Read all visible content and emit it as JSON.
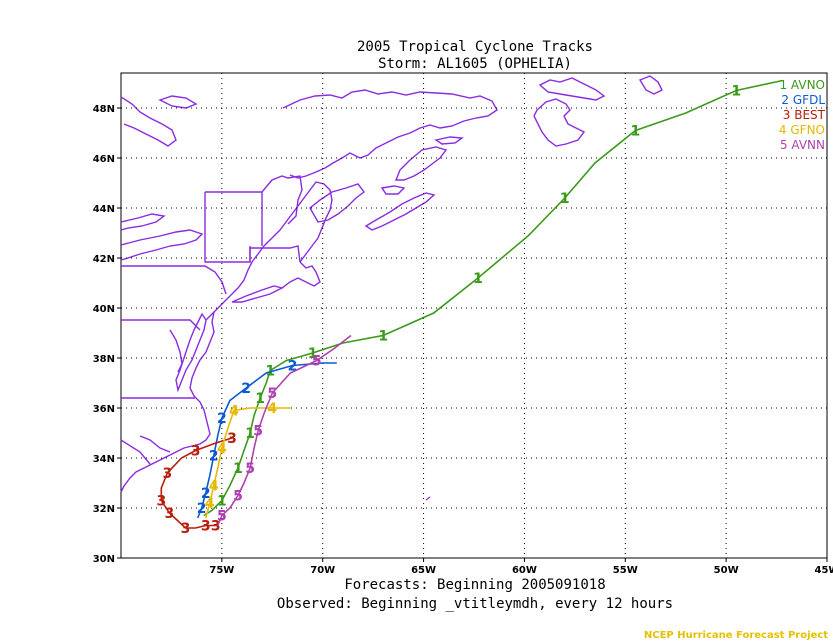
{
  "title_line1": "2005 Tropical Cyclone Tracks",
  "title_line2": "Storm: AL1605 (OPHELIA)",
  "footer_line1": "Forecasts: Beginning 2005091018",
  "footer_line2": "Observed: Beginning _vtitleymdh, every 12 hours",
  "credit": "NCEP Hurricane Forecast Project",
  "colors": {
    "coast": "#8a2be2",
    "grid": "#000000"
  },
  "chart_data": {
    "type": "map-tracks",
    "lon_range": [
      -80,
      -45
    ],
    "lat_range": [
      30,
      49.4
    ],
    "x_ticks": [
      {
        "lon": -75,
        "label": "75W"
      },
      {
        "lon": -70,
        "label": "70W"
      },
      {
        "lon": -65,
        "label": "65W"
      },
      {
        "lon": -60,
        "label": "60W"
      },
      {
        "lon": -55,
        "label": "55W"
      },
      {
        "lon": -50,
        "label": "50W"
      },
      {
        "lon": -45,
        "label": "45W"
      }
    ],
    "y_ticks": [
      {
        "lat": 30,
        "label": "30N"
      },
      {
        "lat": 32,
        "label": "32N"
      },
      {
        "lat": 34,
        "label": "34N"
      },
      {
        "lat": 36,
        "label": "36N"
      },
      {
        "lat": 38,
        "label": "38N"
      },
      {
        "lat": 40,
        "label": "40N"
      },
      {
        "lat": 42,
        "label": "42N"
      },
      {
        "lat": 44,
        "label": "44N"
      },
      {
        "lat": 46,
        "label": "46N"
      },
      {
        "lat": 48,
        "label": "48N"
      }
    ],
    "grid": true,
    "legend_position": "top-right",
    "series": [
      {
        "marker": "1",
        "name": "AVNO",
        "color": "#3a9a1a",
        "points": [
          [
            -75.9,
            31.7
          ],
          [
            -75.5,
            31.9
          ],
          [
            -75.0,
            32.3
          ],
          [
            -74.6,
            32.9
          ],
          [
            -74.2,
            33.6
          ],
          [
            -73.9,
            34.3
          ],
          [
            -73.6,
            35.0
          ],
          [
            -73.4,
            35.7
          ],
          [
            -73.1,
            36.4
          ],
          [
            -72.8,
            37.0
          ],
          [
            -72.6,
            37.5
          ],
          [
            -71.8,
            37.9
          ],
          [
            -70.5,
            38.2
          ],
          [
            -69.0,
            38.6
          ],
          [
            -67.0,
            38.9
          ],
          [
            -64.5,
            39.8
          ],
          [
            -62.3,
            41.2
          ],
          [
            -59.8,
            42.9
          ],
          [
            -58.0,
            44.4
          ],
          [
            -56.5,
            45.8
          ],
          [
            -54.5,
            47.1
          ],
          [
            -52.0,
            47.8
          ],
          [
            -49.5,
            48.7
          ],
          [
            -47.2,
            49.1
          ]
        ],
        "labeled_indices": [
          2,
          4,
          6,
          8,
          10,
          12,
          14,
          16,
          18,
          20,
          22
        ]
      },
      {
        "marker": "2",
        "name": "GFDL",
        "color": "#0a5ad6",
        "points": [
          [
            -76.2,
            31.6
          ],
          [
            -76.0,
            32.0
          ],
          [
            -75.8,
            32.6
          ],
          [
            -75.6,
            33.3
          ],
          [
            -75.4,
            34.1
          ],
          [
            -75.2,
            34.9
          ],
          [
            -75.0,
            35.6
          ],
          [
            -74.6,
            36.3
          ],
          [
            -73.8,
            36.8
          ],
          [
            -72.8,
            37.4
          ],
          [
            -71.5,
            37.7
          ],
          [
            -70.0,
            37.8
          ],
          [
            -69.3,
            37.8
          ]
        ],
        "labeled_indices": [
          1,
          2,
          4,
          6,
          8,
          10
        ]
      },
      {
        "marker": "3",
        "name": "BEST",
        "color": "#b81e0a",
        "points": [
          [
            -74.5,
            34.8
          ],
          [
            -75.3,
            34.6
          ],
          [
            -76.3,
            34.3
          ],
          [
            -77.0,
            34.0
          ],
          [
            -77.7,
            33.4
          ],
          [
            -78.0,
            32.8
          ],
          [
            -78.0,
            32.3
          ],
          [
            -77.6,
            31.8
          ],
          [
            -77.2,
            31.5
          ],
          [
            -76.8,
            31.2
          ],
          [
            -76.3,
            31.2
          ],
          [
            -75.8,
            31.3
          ],
          [
            -75.3,
            31.3
          ]
        ],
        "labeled_indices": [
          0,
          2,
          4,
          6,
          7,
          9,
          11,
          12
        ]
      },
      {
        "marker": "4",
        "name": "GFNO",
        "color": "#e6b800",
        "points": [
          [
            -75.8,
            31.6
          ],
          [
            -75.6,
            32.2
          ],
          [
            -75.4,
            32.9
          ],
          [
            -75.2,
            33.6
          ],
          [
            -75.0,
            34.4
          ],
          [
            -74.7,
            35.2
          ],
          [
            -74.4,
            35.9
          ],
          [
            -73.6,
            36.0
          ],
          [
            -72.5,
            36.0
          ],
          [
            -71.6,
            36.0
          ]
        ],
        "labeled_indices": [
          1,
          2,
          4,
          6,
          8
        ]
      },
      {
        "marker": "5",
        "name": "AVNN",
        "color": "#b040b0",
        "points": [
          [
            -75.2,
            31.3
          ],
          [
            -75.0,
            31.7
          ],
          [
            -74.6,
            32.0
          ],
          [
            -74.2,
            32.5
          ],
          [
            -73.9,
            33.0
          ],
          [
            -73.6,
            33.6
          ],
          [
            -73.4,
            34.4
          ],
          [
            -73.2,
            35.1
          ],
          [
            -72.9,
            35.8
          ],
          [
            -72.5,
            36.6
          ],
          [
            -71.6,
            37.4
          ],
          [
            -70.3,
            37.9
          ],
          [
            -69.4,
            38.4
          ],
          [
            -68.6,
            38.9
          ]
        ],
        "labeled_indices": [
          1,
          3,
          5,
          7,
          9,
          11
        ]
      }
    ]
  }
}
